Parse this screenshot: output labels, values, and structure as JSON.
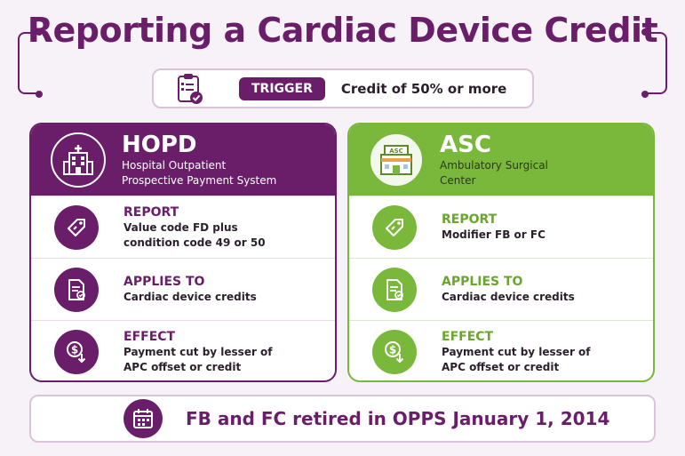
{
  "title": "Reporting a Cardiac Device Credit",
  "trigger": {
    "icon": "clipboard-check-icon",
    "label": "TRIGGER",
    "text": "Credit of 50% or more"
  },
  "columns": [
    {
      "id": "hopd",
      "icon": "hospital-icon",
      "title": "HOPD",
      "subtitle_line1": "Hospital Outpatient",
      "subtitle_line2": "Prospective Payment System",
      "rows": [
        {
          "icon": "tag-icon",
          "label": "REPORT",
          "desc": "Value code FD plus\ncondition code 49 or 50"
        },
        {
          "icon": "document-icon",
          "label": "APPLIES TO",
          "desc": "Cardiac device credits"
        },
        {
          "icon": "dollar-down-icon",
          "label": "EFFECT",
          "desc": "Payment cut by lesser of\nAPC offset or credit"
        }
      ]
    },
    {
      "id": "asc",
      "icon": "asc-building-icon",
      "icon_text": "ASC",
      "title": "ASC",
      "subtitle_line1": "Ambulatory Surgical",
      "subtitle_line2": "Center",
      "rows": [
        {
          "icon": "tag-icon",
          "label": "REPORT",
          "desc": "Modifier FB or FC"
        },
        {
          "icon": "document-icon",
          "label": "APPLIES TO",
          "desc": "Cardiac device credits"
        },
        {
          "icon": "dollar-down-icon",
          "label": "EFFECT",
          "desc": "Payment cut by lesser of\nAPC offset or credit"
        }
      ]
    }
  ],
  "footer": {
    "icon": "calendar-icon",
    "text": "FB and FC retired in OPPS January 1, 2014"
  },
  "colors": {
    "purple": "#6a1e6a",
    "green": "#7ab83b",
    "background": "#f7f2f7"
  }
}
